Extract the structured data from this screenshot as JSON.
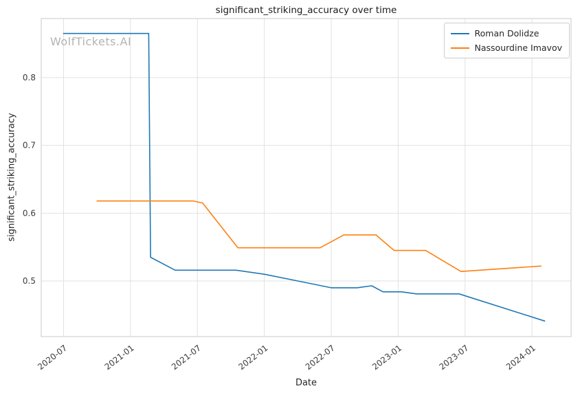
{
  "figure": {
    "watermark": "WolfTickets.AI",
    "watermark_color": "#b3b3b3",
    "background": "#ffffff"
  },
  "chart_data": {
    "type": "line",
    "title": "significant_striking_accuracy over time",
    "xlabel": "Date",
    "ylabel": "significant_striking_accuracy",
    "legend_position": "upper right",
    "grid": true,
    "x_unit": "months, labels formatted YYYY-MM",
    "x_ticks": [
      "2020-07",
      "2021-01",
      "2021-07",
      "2022-01",
      "2022-07",
      "2023-01",
      "2023-07",
      "2024-01"
    ],
    "y_ticks": [
      0.5,
      0.6,
      0.7,
      0.8
    ],
    "xlim_months": [
      4.0,
      51.5
    ],
    "ylim": [
      0.418,
      0.887
    ],
    "style": {
      "grid_color": "#e1e1e1",
      "spine_color": "#c9c9c9",
      "tick_color": "#3b3b3b",
      "line_width": 1.6
    },
    "series": [
      {
        "name": "Roman Dolidze",
        "color": "#1f77b4",
        "points": [
          [
            "2020-07-01",
            0.865
          ],
          [
            "2021-02-20",
            0.865
          ],
          [
            "2021-02-25",
            0.535
          ],
          [
            "2021-05-01",
            0.516
          ],
          [
            "2021-10-15",
            0.516
          ],
          [
            "2022-01-01",
            0.51
          ],
          [
            "2022-04-01",
            0.5
          ],
          [
            "2022-07-01",
            0.49
          ],
          [
            "2022-09-10",
            0.49
          ],
          [
            "2022-10-20",
            0.493
          ],
          [
            "2022-11-20",
            0.484
          ],
          [
            "2023-01-10",
            0.484
          ],
          [
            "2023-02-20",
            0.481
          ],
          [
            "2023-06-15",
            0.481
          ],
          [
            "2024-02-05",
            0.441
          ]
        ]
      },
      {
        "name": "Nassourdine Imavov",
        "color": "#ff7f0e",
        "points": [
          [
            "2020-10-01",
            0.618
          ],
          [
            "2021-06-20",
            0.618
          ],
          [
            "2021-07-15",
            0.615
          ],
          [
            "2021-10-20",
            0.549
          ],
          [
            "2022-06-01",
            0.549
          ],
          [
            "2022-08-05",
            0.568
          ],
          [
            "2022-11-01",
            0.568
          ],
          [
            "2022-12-20",
            0.545
          ],
          [
            "2023-03-15",
            0.545
          ],
          [
            "2023-06-20",
            0.514
          ],
          [
            "2024-01-25",
            0.522
          ]
        ]
      }
    ]
  }
}
